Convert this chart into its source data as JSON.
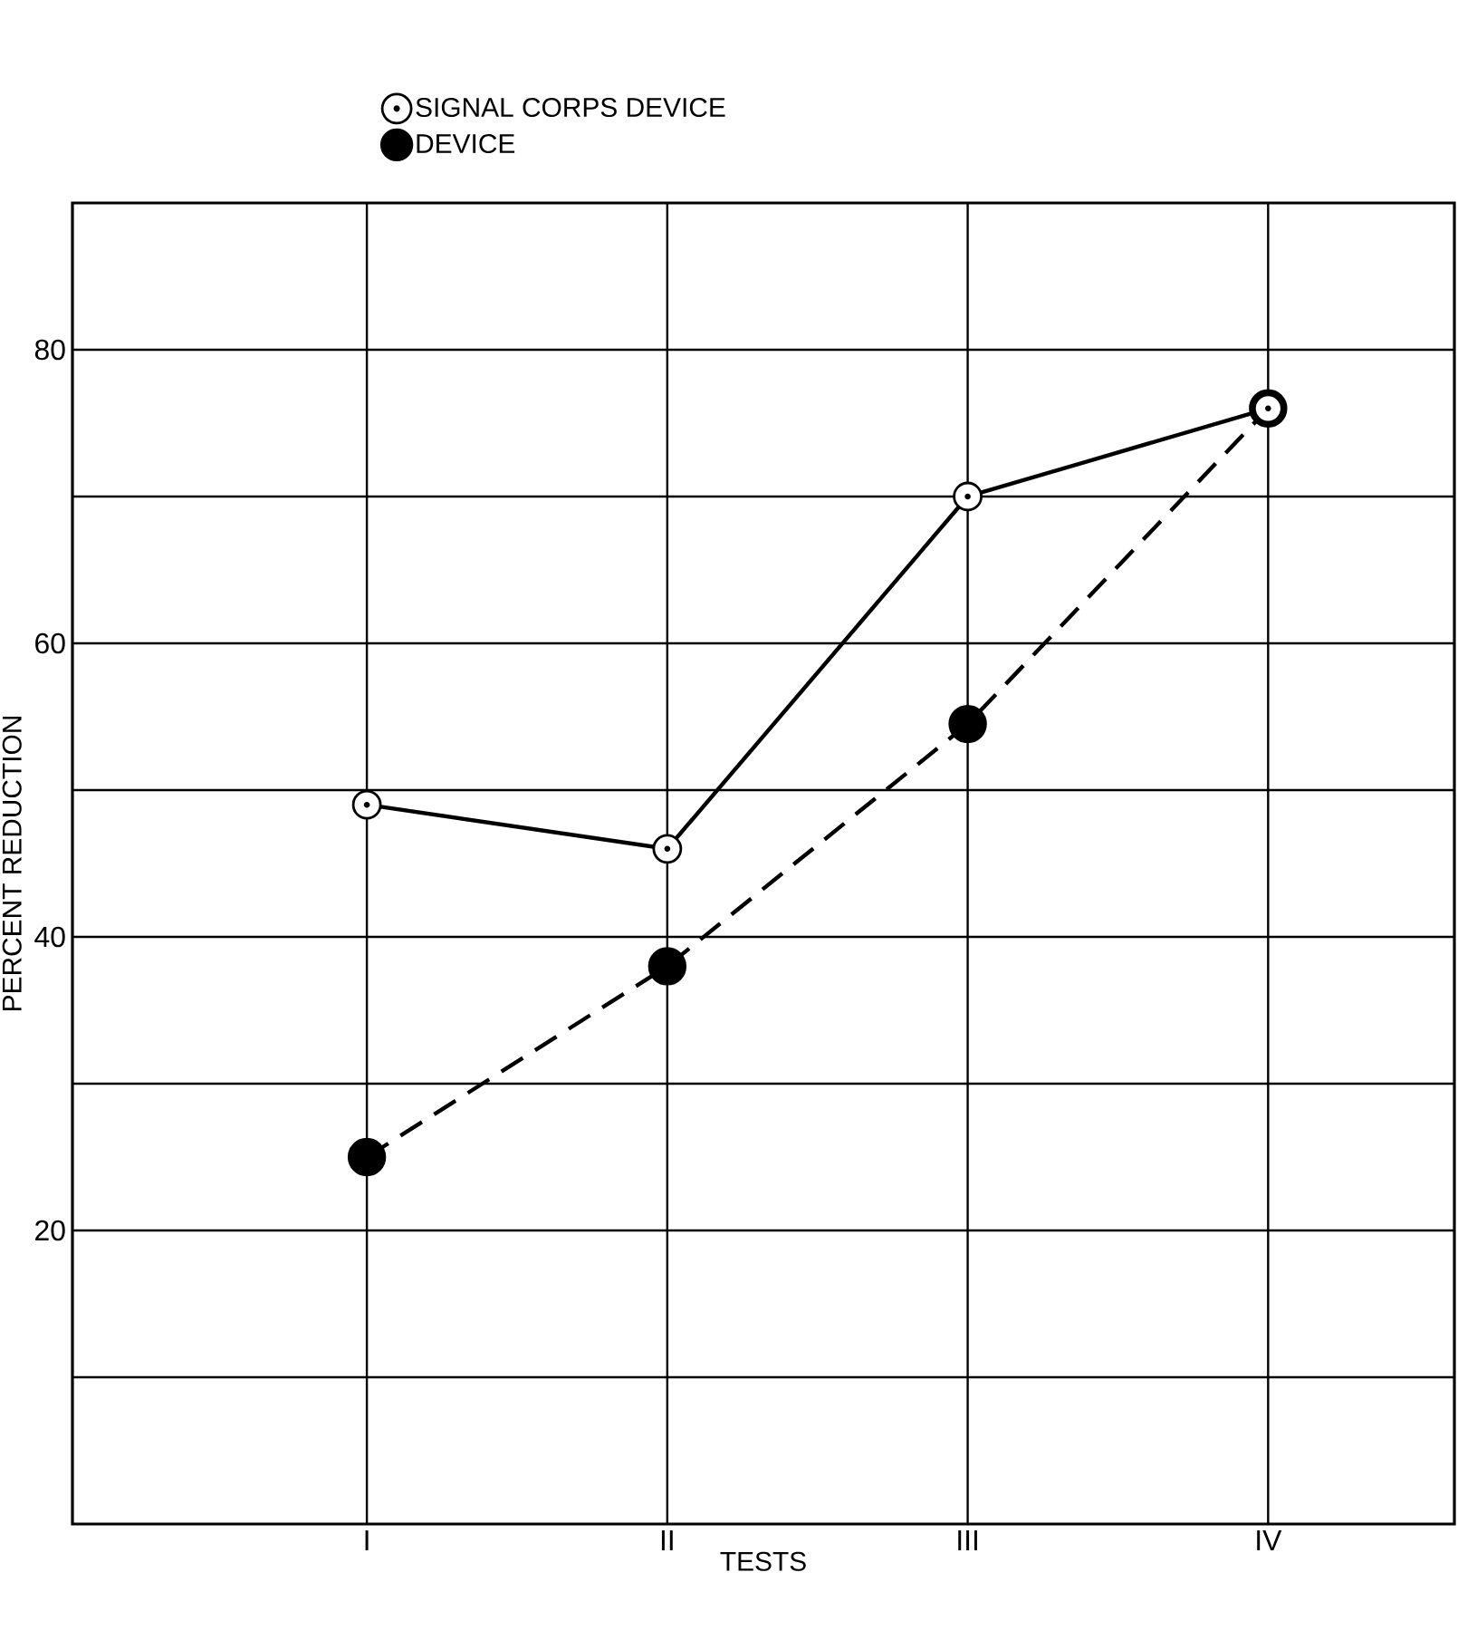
{
  "chart_data": {
    "type": "line",
    "xlabel": "TESTS",
    "ylabel": "PERCENT REDUCTION",
    "categories": [
      "I",
      "II",
      "III",
      "IV"
    ],
    "series": [
      {
        "name": "SIGNAL CORPS DEVICE",
        "color": "#000000",
        "values": [
          49,
          46,
          70,
          76
        ],
        "line_style": "solid"
      },
      {
        "name": "DEVICE",
        "color": "#000000",
        "values": [
          25,
          38,
          54.5,
          76
        ],
        "line_style": "dashed"
      }
    ],
    "ylim": [
      0,
      90
    ],
    "yticks": [
      {
        "value": 10,
        "label": null
      },
      20,
      {
        "value": 30,
        "label": null
      },
      40,
      {
        "value": 50,
        "label": null
      },
      60,
      {
        "value": 70,
        "label": null
      },
      80
    ],
    "grid": true,
    "legend": "top",
    "marker": "circle"
  }
}
